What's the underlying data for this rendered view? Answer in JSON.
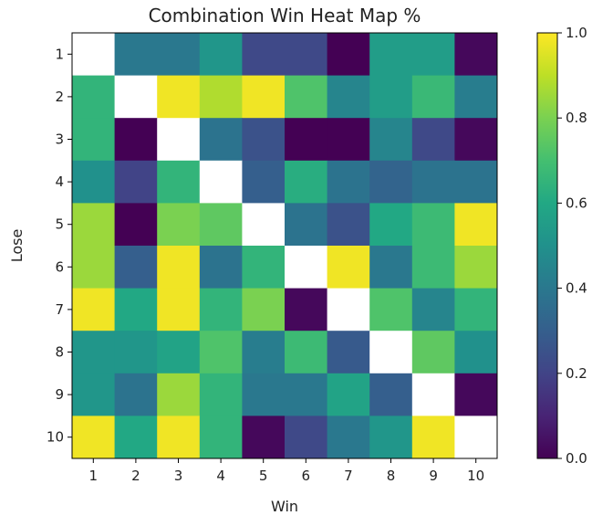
{
  "chart_data": {
    "type": "heatmap",
    "title": "Combination Win Heat Map %",
    "xlabel": "Win",
    "ylabel": "Lose",
    "x_categories": [
      "1",
      "2",
      "3",
      "4",
      "5",
      "6",
      "7",
      "8",
      "9",
      "10"
    ],
    "y_categories": [
      "1",
      "2",
      "3",
      "4",
      "5",
      "6",
      "7",
      "8",
      "9",
      "10"
    ],
    "colormap": "viridis",
    "vmin": 0.0,
    "vmax": 1.0,
    "colorbar_ticks": [
      "0.0",
      "0.2",
      "0.4",
      "0.6",
      "0.8",
      "1.0"
    ],
    "diagonal": "blank",
    "values": [
      [
        null,
        0.4,
        0.4,
        0.52,
        0.22,
        0.22,
        0.0,
        0.55,
        0.55,
        0.02
      ],
      [
        0.65,
        null,
        0.98,
        0.88,
        0.98,
        0.72,
        0.45,
        0.55,
        0.67,
        0.42
      ],
      [
        0.65,
        0.0,
        null,
        0.38,
        0.25,
        0.0,
        0.0,
        0.45,
        0.22,
        0.02
      ],
      [
        0.5,
        0.2,
        0.65,
        null,
        0.3,
        0.62,
        0.38,
        0.32,
        0.38,
        0.38
      ],
      [
        0.85,
        0.0,
        0.8,
        0.75,
        null,
        0.38,
        0.25,
        0.6,
        0.68,
        0.98
      ],
      [
        0.85,
        0.3,
        0.98,
        0.38,
        0.65,
        null,
        0.98,
        0.4,
        0.68,
        0.85
      ],
      [
        0.98,
        0.6,
        0.98,
        0.65,
        0.8,
        0.02,
        null,
        0.72,
        0.45,
        0.65
      ],
      [
        0.52,
        0.52,
        0.58,
        0.72,
        0.42,
        0.68,
        0.28,
        null,
        0.75,
        0.5
      ],
      [
        0.52,
        0.38,
        0.85,
        0.65,
        0.4,
        0.4,
        0.58,
        0.3,
        null,
        0.02
      ],
      [
        0.98,
        0.6,
        0.98,
        0.65,
        0.02,
        0.22,
        0.4,
        0.52,
        0.98,
        null
      ]
    ]
  },
  "colors": {
    "background": "#ffffff",
    "text": "#222222",
    "diagonal": "#ffffff"
  }
}
